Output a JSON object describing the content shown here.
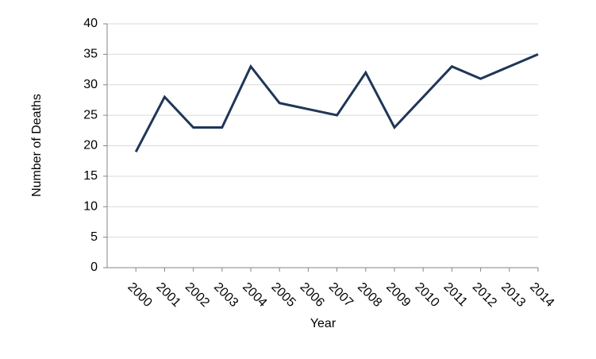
{
  "chart_data": {
    "type": "line",
    "x_label": "Year",
    "y_label": "Number of Deaths",
    "categories": [
      "2000",
      "2001",
      "2002",
      "2003",
      "2004",
      "2005",
      "2006",
      "2007",
      "2008",
      "2009",
      "2010",
      "2011",
      "2012",
      "2013",
      "2014"
    ],
    "series": [
      {
        "name": "Number of Deaths",
        "color": "#1f3658",
        "values": [
          19,
          28,
          23,
          23,
          33,
          27,
          26,
          25,
          32,
          23,
          28,
          33,
          31,
          33,
          35
        ]
      }
    ],
    "ylim": [
      0,
      40
    ],
    "yticks": [
      0,
      5,
      10,
      15,
      20,
      25,
      30,
      35,
      40
    ],
    "grid": true
  }
}
